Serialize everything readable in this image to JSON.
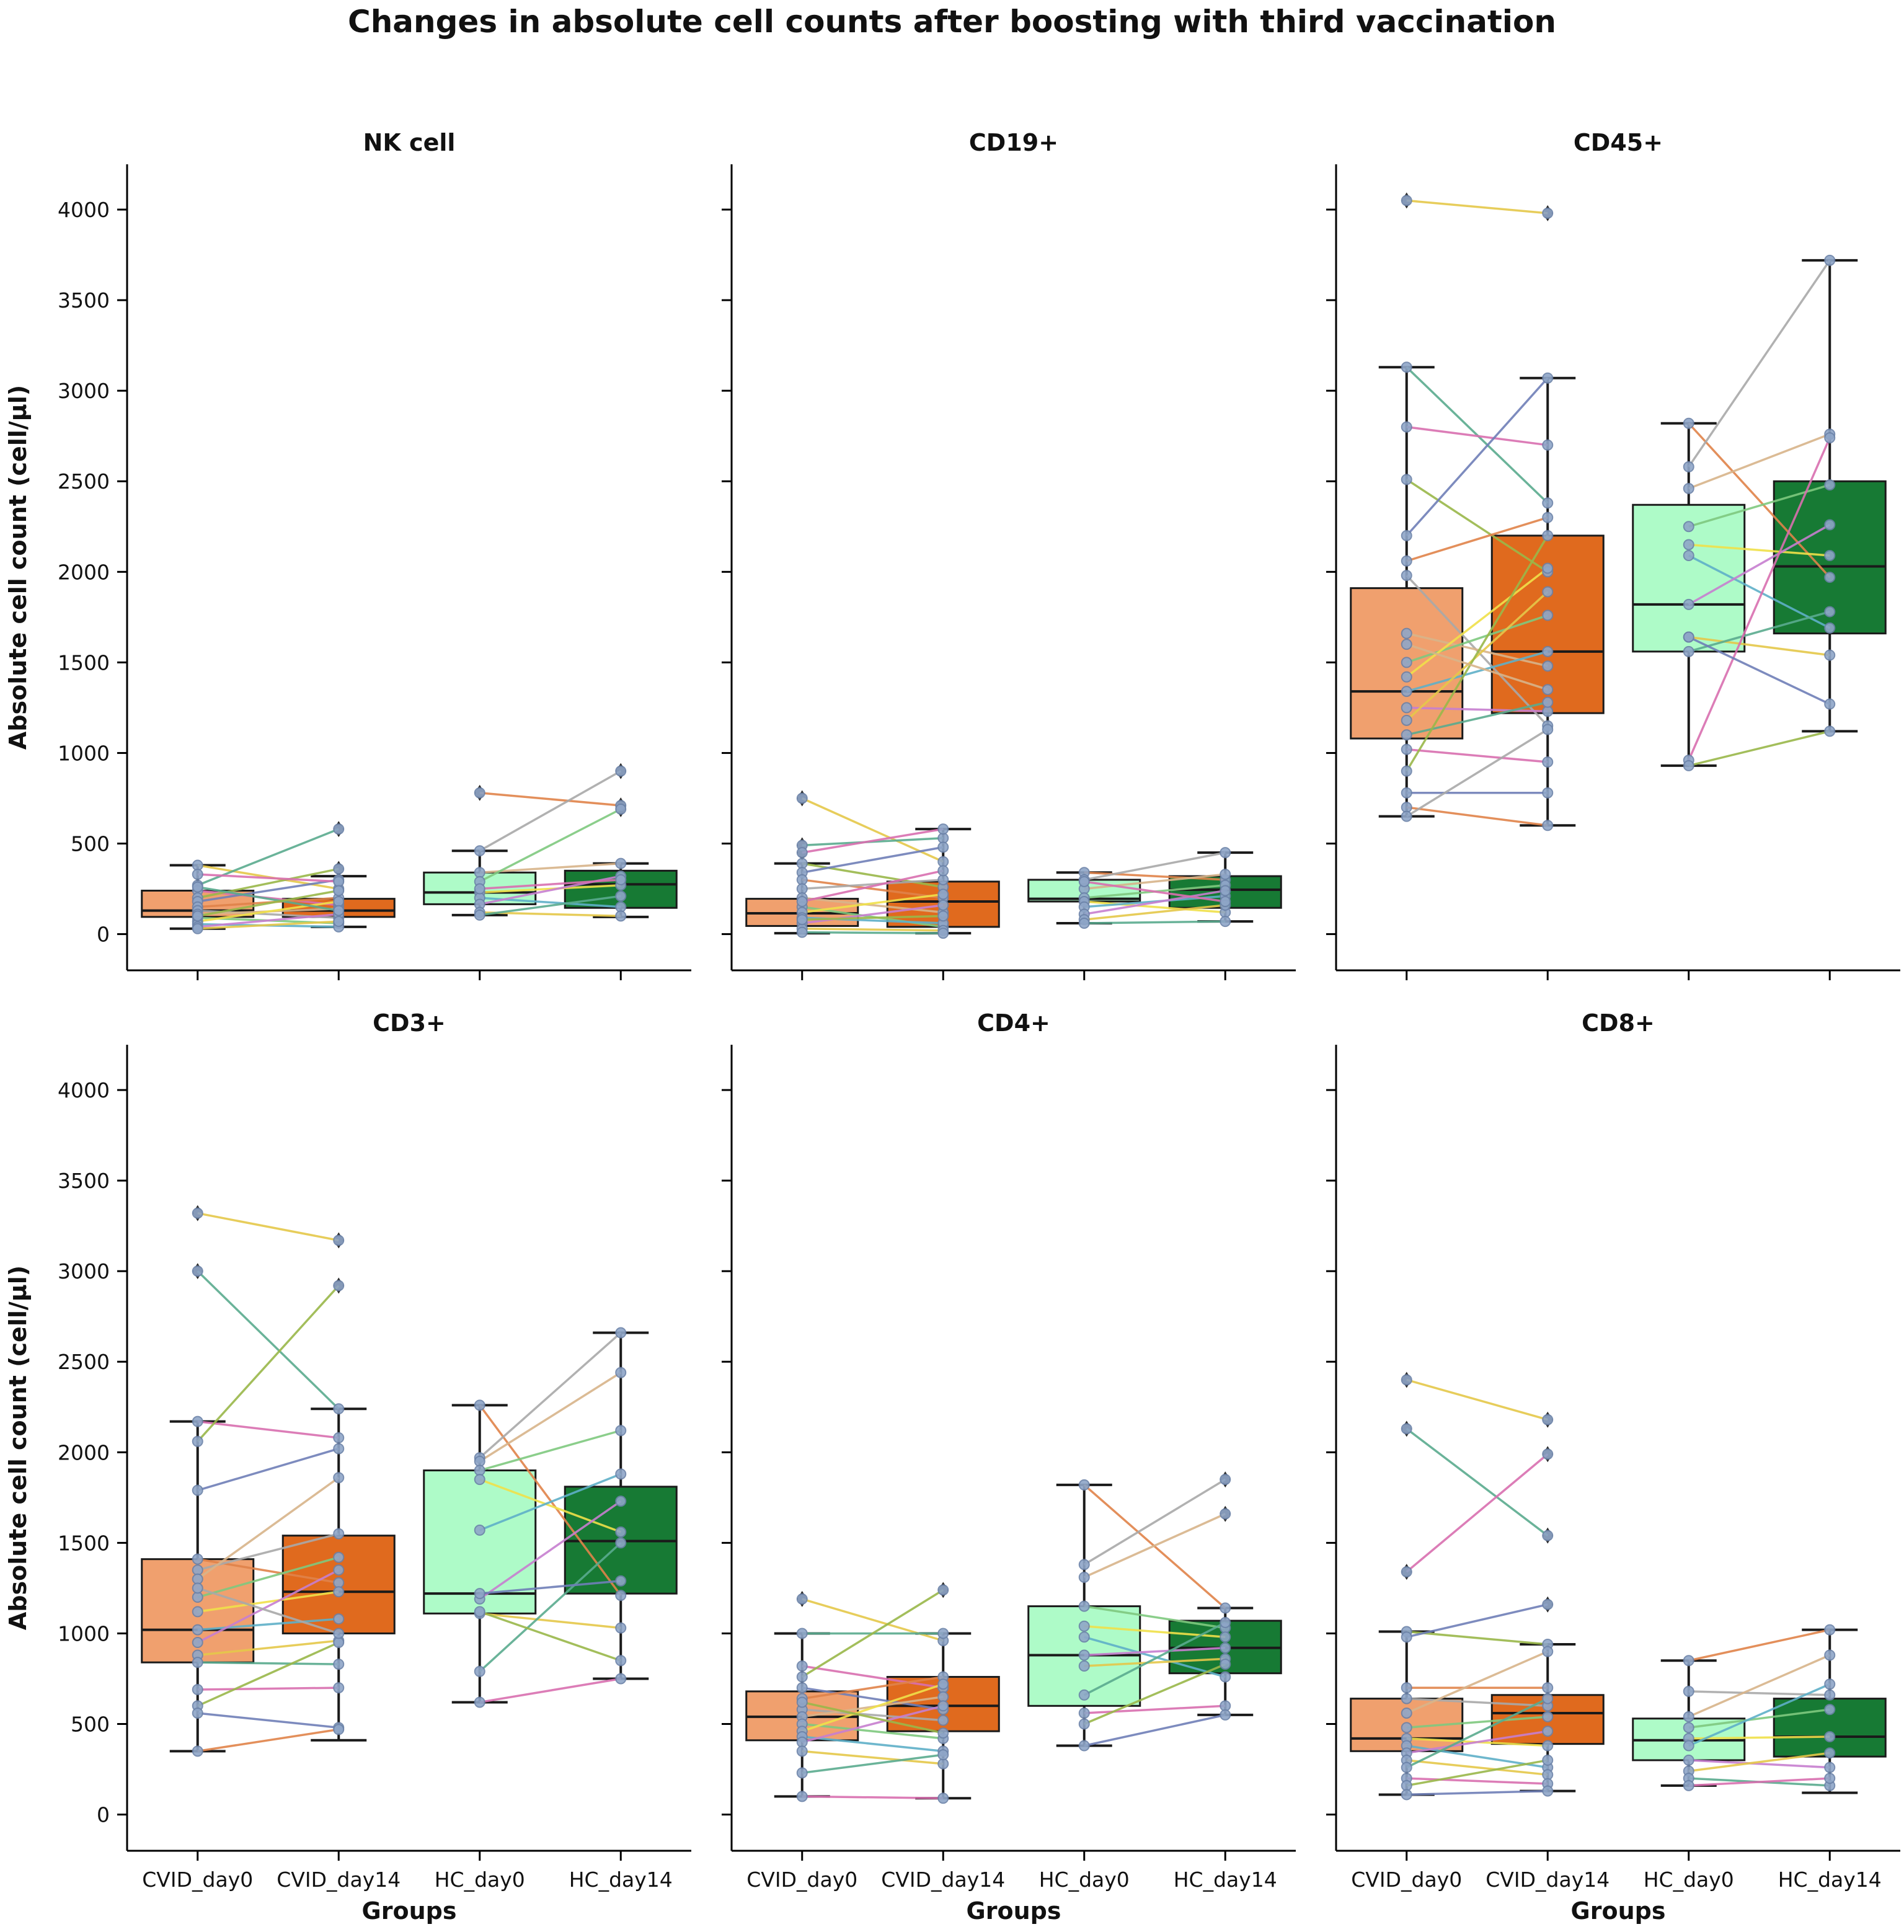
{
  "figure_title": "Changes in absolute cell counts after boosting with third vaccination",
  "colors": {
    "CVID_day0": "#f0a06e",
    "CVID_day14": "#e06a1e",
    "HC_day0": "#aefbc8",
    "HC_day14": "#177a34",
    "outline": "#1a1a1a",
    "point_fill": "#8fa6c8",
    "point_edge": "#6b82a8"
  },
  "line_palette": [
    "#e5c84a",
    "#5aab8f",
    "#d96fb0",
    "#9ab84a",
    "#6f7fb8",
    "#e0834a",
    "#a9a9a9",
    "#d8b48a",
    "#7fc97f",
    "#f0e14a",
    "#5fb0c8",
    "#c77fd0"
  ],
  "chart_data": {
    "type": "box",
    "categories": [
      "CVID_day0",
      "CVID_day14",
      "HC_day0",
      "HC_day14"
    ],
    "xlabel": "Groups",
    "ylabel": "Absolute cell count (cell/µl)",
    "ylim": [
      -200,
      4250
    ],
    "yticks": [
      0,
      500,
      1000,
      1500,
      2000,
      2500,
      3000,
      3500,
      4000
    ],
    "panels": [
      {
        "title": "NK cell",
        "boxes": [
          {
            "q1": 95,
            "median": 130,
            "q3": 240,
            "whisker_low": 30,
            "whisker_high": 380,
            "outliers": []
          },
          {
            "q1": 95,
            "median": 130,
            "q3": 195,
            "whisker_low": 40,
            "whisker_high": 320,
            "outliers": [
              360,
              580
            ]
          },
          {
            "q1": 165,
            "median": 230,
            "q3": 340,
            "whisker_low": 105,
            "whisker_high": 460,
            "outliers": [
              780
            ]
          },
          {
            "q1": 145,
            "median": 275,
            "q3": 350,
            "whisker_low": 95,
            "whisker_high": 390,
            "outliers": [
              690,
              710,
              900
            ]
          }
        ],
        "pairs_cvid": [
          [
            380,
            250
          ],
          [
            270,
            580
          ],
          [
            240,
            160
          ],
          [
            200,
            360
          ],
          [
            180,
            300
          ],
          [
            150,
            200
          ],
          [
            130,
            90
          ],
          [
            110,
            140
          ],
          [
            90,
            60
          ],
          [
            70,
            180
          ],
          [
            55,
            40
          ],
          [
            40,
            110
          ],
          [
            30,
            70
          ],
          [
            260,
            130
          ],
          [
            330,
            290
          ],
          [
            100,
            240
          ]
        ],
        "pairs_hc": [
          [
            780,
            710
          ],
          [
            460,
            900
          ],
          [
            340,
            390
          ],
          [
            290,
            690
          ],
          [
            230,
            270
          ],
          [
            200,
            150
          ],
          [
            165,
            320
          ],
          [
            120,
            100
          ],
          [
            105,
            210
          ],
          [
            250,
            300
          ]
        ]
      },
      {
        "title": "CD19+",
        "boxes": [
          {
            "q1": 45,
            "median": 115,
            "q3": 195,
            "whisker_low": 5,
            "whisker_high": 390,
            "outliers": [
              450,
              490,
              750
            ]
          },
          {
            "q1": 40,
            "median": 180,
            "q3": 290,
            "whisker_low": 5,
            "whisker_high": 580,
            "outliers": []
          },
          {
            "q1": 180,
            "median": 195,
            "q3": 300,
            "whisker_low": 60,
            "whisker_high": 340,
            "outliers": []
          },
          {
            "q1": 145,
            "median": 245,
            "q3": 320,
            "whisker_low": 70,
            "whisker_high": 450,
            "outliers": []
          }
        ],
        "pairs_cvid": [
          [
            750,
            400
          ],
          [
            490,
            530
          ],
          [
            450,
            580
          ],
          [
            390,
            260
          ],
          [
            340,
            480
          ],
          [
            300,
            200
          ],
          [
            250,
            300
          ],
          [
            200,
            120
          ],
          [
            150,
            40
          ],
          [
            120,
            220
          ],
          [
            90,
            60
          ],
          [
            60,
            160
          ],
          [
            30,
            20
          ],
          [
            10,
            5
          ],
          [
            180,
            350
          ],
          [
            80,
            100
          ]
        ],
        "pairs_hc": [
          [
            340,
            300
          ],
          [
            300,
            450
          ],
          [
            250,
            330
          ],
          [
            200,
            270
          ],
          [
            180,
            120
          ],
          [
            150,
            210
          ],
          [
            110,
            240
          ],
          [
            80,
            160
          ],
          [
            60,
            70
          ],
          [
            290,
            180
          ]
        ]
      },
      {
        "title": "CD45+",
        "boxes": [
          {
            "q1": 1080,
            "median": 1340,
            "q3": 1910,
            "whisker_low": 650,
            "whisker_high": 3130,
            "outliers": [
              4050
            ]
          },
          {
            "q1": 1220,
            "median": 1560,
            "q3": 2200,
            "whisker_low": 600,
            "whisker_high": 3070,
            "outliers": [
              3980
            ]
          },
          {
            "q1": 1560,
            "median": 1820,
            "q3": 2370,
            "whisker_low": 930,
            "whisker_high": 2820,
            "outliers": []
          },
          {
            "q1": 1660,
            "median": 2030,
            "q3": 2500,
            "whisker_low": 1120,
            "whisker_high": 3720,
            "outliers": []
          }
        ],
        "pairs_cvid": [
          [
            4050,
            3980
          ],
          [
            3130,
            2380
          ],
          [
            2800,
            2700
          ],
          [
            2510,
            2000
          ],
          [
            2200,
            3070
          ],
          [
            2060,
            2300
          ],
          [
            1980,
            1150
          ],
          [
            1660,
            1480
          ],
          [
            1500,
            1760
          ],
          [
            1420,
            2020
          ],
          [
            1340,
            1560
          ],
          [
            1250,
            1230
          ],
          [
            1180,
            1890
          ],
          [
            1100,
            1280
          ],
          [
            1020,
            950
          ],
          [
            900,
            2200
          ],
          [
            780,
            780
          ],
          [
            700,
            600
          ],
          [
            650,
            1130
          ],
          [
            1600,
            1350
          ]
        ],
        "pairs_hc": [
          [
            2820,
            1970
          ],
          [
            2580,
            3720
          ],
          [
            2460,
            2760
          ],
          [
            2250,
            2480
          ],
          [
            2150,
            2090
          ],
          [
            2090,
            1690
          ],
          [
            1820,
            2260
          ],
          [
            1640,
            1540
          ],
          [
            1560,
            1780
          ],
          [
            960,
            2740
          ],
          [
            930,
            1120
          ],
          [
            1640,
            1270
          ]
        ]
      },
      {
        "title": "CD3+",
        "boxes": [
          {
            "q1": 840,
            "median": 1020,
            "q3": 1410,
            "whisker_low": 350,
            "whisker_high": 2170,
            "outliers": [
              3000,
              3320
            ]
          },
          {
            "q1": 1000,
            "median": 1230,
            "q3": 1540,
            "whisker_low": 410,
            "whisker_high": 2240,
            "outliers": [
              2920,
              3170
            ]
          },
          {
            "q1": 1110,
            "median": 1220,
            "q3": 1900,
            "whisker_low": 620,
            "whisker_high": 2260,
            "outliers": []
          },
          {
            "q1": 1220,
            "median": 1510,
            "q3": 1810,
            "whisker_low": 750,
            "whisker_high": 2660,
            "outliers": []
          }
        ],
        "pairs_cvid": [
          [
            3320,
            3170
          ],
          [
            3000,
            2240
          ],
          [
            2170,
            2080
          ],
          [
            2060,
            2920
          ],
          [
            1790,
            2020
          ],
          [
            1410,
            1280
          ],
          [
            1350,
            1550
          ],
          [
            1300,
            1860
          ],
          [
            1200,
            1420
          ],
          [
            1120,
            1230
          ],
          [
            1020,
            1080
          ],
          [
            950,
            1350
          ],
          [
            880,
            960
          ],
          [
            840,
            830
          ],
          [
            690,
            700
          ],
          [
            600,
            950
          ],
          [
            560,
            480
          ],
          [
            350,
            470
          ],
          [
            1250,
            1000
          ]
        ],
        "pairs_hc": [
          [
            2260,
            1210
          ],
          [
            1970,
            2660
          ],
          [
            1950,
            2440
          ],
          [
            1900,
            2120
          ],
          [
            1850,
            1560
          ],
          [
            1570,
            1880
          ],
          [
            1190,
            1730
          ],
          [
            1110,
            1030
          ],
          [
            790,
            1500
          ],
          [
            620,
            750
          ],
          [
            1120,
            850
          ],
          [
            1220,
            1290
          ]
        ]
      },
      {
        "title": "CD4+",
        "boxes": [
          {
            "q1": 410,
            "median": 540,
            "q3": 680,
            "whisker_low": 100,
            "whisker_high": 1000,
            "outliers": [
              1190
            ]
          },
          {
            "q1": 460,
            "median": 600,
            "q3": 760,
            "whisker_low": 90,
            "whisker_high": 1000,
            "outliers": [
              1240
            ]
          },
          {
            "q1": 600,
            "median": 880,
            "q3": 1150,
            "whisker_low": 380,
            "whisker_high": 1820,
            "outliers": []
          },
          {
            "q1": 780,
            "median": 920,
            "q3": 1070,
            "whisker_low": 550,
            "whisker_high": 1140,
            "outliers": [
              1660,
              1850
            ]
          }
        ],
        "pairs_cvid": [
          [
            1190,
            960
          ],
          [
            1000,
            1000
          ],
          [
            820,
            700
          ],
          [
            760,
            1240
          ],
          [
            700,
            580
          ],
          [
            640,
            760
          ],
          [
            580,
            520
          ],
          [
            540,
            650
          ],
          [
            500,
            420
          ],
          [
            460,
            720
          ],
          [
            430,
            350
          ],
          [
            400,
            600
          ],
          [
            350,
            280
          ],
          [
            230,
            330
          ],
          [
            100,
            90
          ],
          [
            620,
            450
          ]
        ],
        "pairs_hc": [
          [
            1820,
            1140
          ],
          [
            1380,
            1850
          ],
          [
            1310,
            1660
          ],
          [
            1150,
            1030
          ],
          [
            1040,
            980
          ],
          [
            980,
            760
          ],
          [
            880,
            920
          ],
          [
            820,
            860
          ],
          [
            660,
            1060
          ],
          [
            560,
            600
          ],
          [
            500,
            830
          ],
          [
            380,
            550
          ]
        ]
      },
      {
        "title": "CD8+",
        "boxes": [
          {
            "q1": 350,
            "median": 420,
            "q3": 640,
            "whisker_low": 110,
            "whisker_high": 1010,
            "outliers": [
              1340,
              2130,
              2400
            ]
          },
          {
            "q1": 390,
            "median": 560,
            "q3": 660,
            "whisker_low": 130,
            "whisker_high": 940,
            "outliers": [
              1160,
              1540,
              1990,
              2180
            ]
          },
          {
            "q1": 300,
            "median": 410,
            "q3": 530,
            "whisker_low": 160,
            "whisker_high": 850,
            "outliers": []
          },
          {
            "q1": 320,
            "median": 430,
            "q3": 640,
            "whisker_low": 120,
            "whisker_high": 1020,
            "outliers": []
          }
        ],
        "pairs_cvid": [
          [
            2400,
            2180
          ],
          [
            2130,
            1540
          ],
          [
            1340,
            1990
          ],
          [
            1010,
            940
          ],
          [
            980,
            1160
          ],
          [
            700,
            700
          ],
          [
            640,
            600
          ],
          [
            560,
            900
          ],
          [
            480,
            540
          ],
          [
            420,
            380
          ],
          [
            380,
            260
          ],
          [
            340,
            460
          ],
          [
            300,
            220
          ],
          [
            260,
            640
          ],
          [
            200,
            170
          ],
          [
            160,
            300
          ],
          [
            110,
            130
          ]
        ],
        "pairs_hc": [
          [
            850,
            1020
          ],
          [
            680,
            660
          ],
          [
            540,
            880
          ],
          [
            480,
            580
          ],
          [
            420,
            430
          ],
          [
            380,
            720
          ],
          [
            300,
            260
          ],
          [
            240,
            340
          ],
          [
            200,
            160
          ],
          [
            160,
            200
          ]
        ]
      }
    ]
  }
}
